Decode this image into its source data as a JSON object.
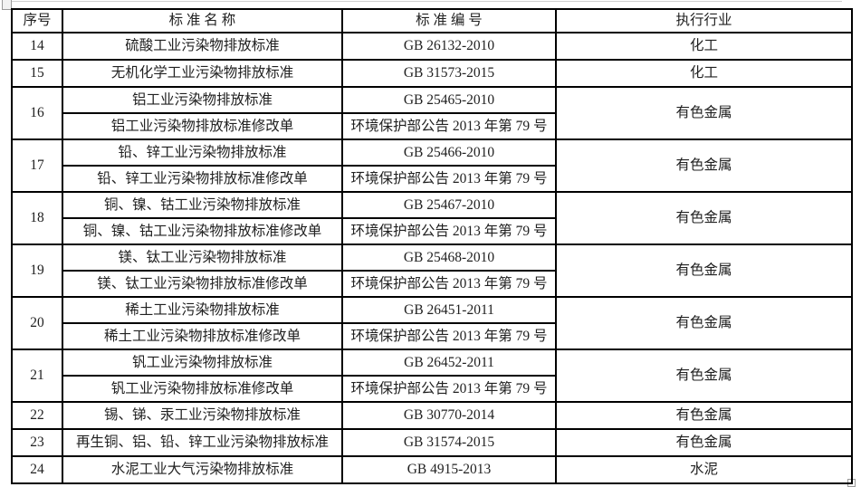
{
  "page": {
    "background": "#ffffff",
    "border_color": "#000000",
    "text_color": "#212121"
  },
  "table": {
    "columns": [
      {
        "key": "no",
        "label": "序号"
      },
      {
        "key": "name",
        "label": "标 准 名 称"
      },
      {
        "key": "code",
        "label": "标 准 编 号"
      },
      {
        "key": "industry",
        "label": "执行行业"
      }
    ],
    "rows": [
      {
        "no": "14",
        "industry": "化工",
        "entries": [
          {
            "name": "硫酸工业污染物排放标准",
            "code": "GB 26132-2010"
          }
        ]
      },
      {
        "no": "15",
        "industry": "化工",
        "entries": [
          {
            "name": "无机化学工业污染物排放标准",
            "code": "GB 31573-2015"
          }
        ]
      },
      {
        "no": "16",
        "industry": "有色金属",
        "entries": [
          {
            "name": "铝工业污染物排放标准",
            "code": "GB 25465-2010"
          },
          {
            "name": "铝工业污染物排放标准修改单",
            "code": "环境保护部公告 2013 年第 79 号"
          }
        ]
      },
      {
        "no": "17",
        "industry": "有色金属",
        "entries": [
          {
            "name": "铅、锌工业污染物排放标准",
            "code": "GB 25466-2010"
          },
          {
            "name": "铅、锌工业污染物排放标准修改单",
            "code": "环境保护部公告 2013 年第 79 号"
          }
        ]
      },
      {
        "no": "18",
        "industry": "有色金属",
        "entries": [
          {
            "name": "铜、镍、钴工业污染物排放标准",
            "code": "GB 25467-2010"
          },
          {
            "name": "铜、镍、钴工业污染物排放标准修改单",
            "code": "环境保护部公告 2013 年第 79 号"
          }
        ]
      },
      {
        "no": "19",
        "industry": "有色金属",
        "entries": [
          {
            "name": "镁、钛工业污染物排放标准",
            "code": "GB 25468-2010"
          },
          {
            "name": "镁、钛工业污染物排放标准修改单",
            "code": "环境保护部公告 2013 年第 79 号"
          }
        ]
      },
      {
        "no": "20",
        "industry": "有色金属",
        "entries": [
          {
            "name": "稀土工业污染物排放标准",
            "code": "GB 26451-2011"
          },
          {
            "name": "稀土工业污染物排放标准修改单",
            "code": "环境保护部公告 2013 年第 79 号"
          }
        ]
      },
      {
        "no": "21",
        "industry": "有色金属",
        "entries": [
          {
            "name": "钒工业污染物排放标准",
            "code": "GB 26452-2011"
          },
          {
            "name": "钒工业污染物排放标准修改单",
            "code": "环境保护部公告 2013 年第 79 号"
          }
        ]
      },
      {
        "no": "22",
        "industry": "有色金属",
        "entries": [
          {
            "name": "锡、锑、汞工业污染物排放标准",
            "code": "GB 30770-2014"
          }
        ]
      },
      {
        "no": "23",
        "industry": "有色金属",
        "entries": [
          {
            "name": "再生铜、铝、铅、锌工业污染物排放标准",
            "code": "GB 31574-2015"
          }
        ]
      },
      {
        "no": "24",
        "industry": "水泥",
        "entries": [
          {
            "name": "水泥工业大气污染物排放标准",
            "code": "GB 4915-2013"
          }
        ]
      }
    ]
  }
}
